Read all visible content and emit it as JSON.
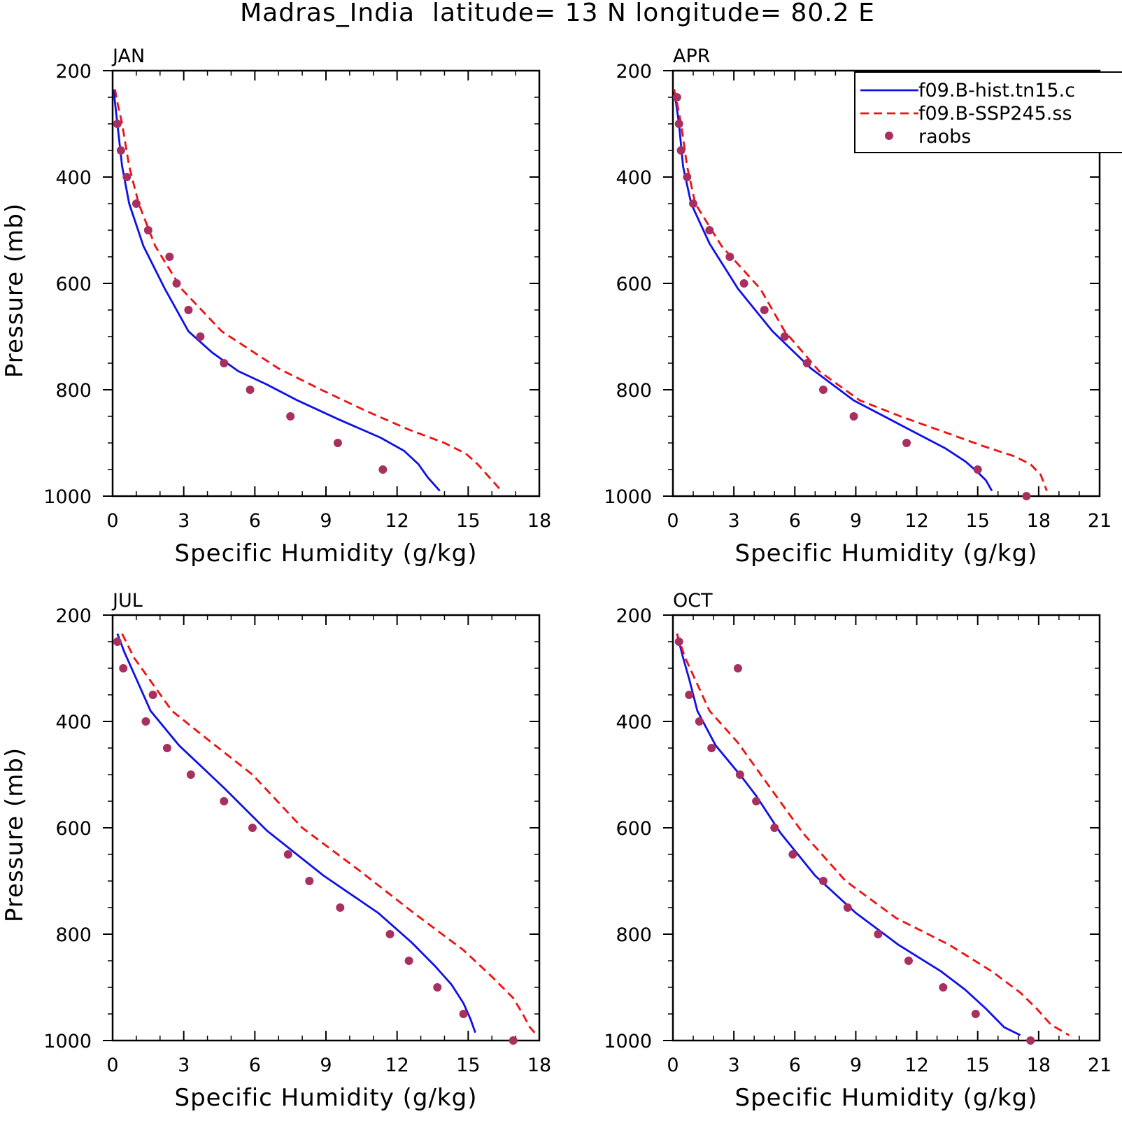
{
  "figure": {
    "title": "Madras_India  latitude= 13 N longitude= 80.2 E"
  },
  "legend": {
    "entries": [
      {
        "label": "f09.B-hist.tn15.c",
        "style": "solid",
        "color": "#1010e8"
      },
      {
        "label": "f09.B-SSP245.ss",
        "style": "dashed",
        "color": "#f01010"
      },
      {
        "label": "raobs",
        "style": "dot",
        "color": "#a83060"
      }
    ]
  },
  "colors": {
    "hist": "#1010e8",
    "ssp": "#f01010",
    "raobs": "#a83060"
  },
  "chart_data": [
    {
      "type": "line",
      "panel": "JAN",
      "xlabel": "Specific Humidity (g/kg)",
      "ylabel": "Pressure (mb)",
      "xlim": [
        0,
        18
      ],
      "ylim": [
        1000,
        200
      ],
      "xticks": [
        0,
        3,
        6,
        9,
        12,
        15,
        18
      ],
      "yticks": [
        200,
        400,
        600,
        800,
        1000
      ],
      "series": [
        {
          "name": "f09.B-hist.tn15.c",
          "style": "solid",
          "x": [
            0.05,
            0.1,
            0.2,
            0.4,
            0.7,
            1.3,
            2.2,
            3.2,
            4.2,
            5.3,
            6.5,
            7.8,
            9.5,
            11.3,
            12.3,
            12.9,
            13.3,
            13.8
          ],
          "y": [
            235,
            260,
            300,
            380,
            450,
            530,
            610,
            690,
            730,
            765,
            790,
            820,
            855,
            890,
            915,
            940,
            965,
            990
          ]
        },
        {
          "name": "f09.B-SSP245.ss",
          "style": "dashed",
          "x": [
            0.1,
            0.2,
            0.4,
            0.7,
            1.1,
            1.8,
            2.9,
            4.6,
            7.0,
            8.8,
            10.7,
            12.5,
            14.0,
            14.9,
            15.4,
            15.9,
            16.4
          ],
          "y": [
            235,
            260,
            300,
            380,
            450,
            530,
            610,
            690,
            760,
            800,
            840,
            875,
            900,
            920,
            940,
            965,
            990
          ]
        },
        {
          "name": "raobs",
          "style": "dot",
          "x": [
            0.2,
            0.35,
            0.6,
            1.0,
            1.5,
            2.4,
            2.7,
            3.2,
            3.7,
            4.7,
            5.8,
            7.5,
            9.5,
            11.4
          ],
          "y": [
            300,
            350,
            400,
            450,
            500,
            550,
            600,
            650,
            700,
            750,
            800,
            850,
            900,
            950
          ]
        }
      ]
    },
    {
      "type": "line",
      "panel": "APR",
      "xlabel": "Specific Humidity (g/kg)",
      "ylabel": "",
      "xlim": [
        0,
        21
      ],
      "ylim": [
        1000,
        200
      ],
      "xticks": [
        0,
        3,
        6,
        9,
        12,
        15,
        18,
        21
      ],
      "yticks": [
        200,
        400,
        600,
        800,
        1000
      ],
      "series": [
        {
          "name": "f09.B-hist.tn15.c",
          "style": "solid",
          "x": [
            0.05,
            0.15,
            0.3,
            0.5,
            0.9,
            1.8,
            3.2,
            4.9,
            6.8,
            8.9,
            11.4,
            13.4,
            14.4,
            15.0,
            15.4,
            15.7
          ],
          "y": [
            235,
            260,
            300,
            380,
            450,
            525,
            610,
            690,
            760,
            820,
            870,
            910,
            935,
            955,
            970,
            990
          ]
        },
        {
          "name": "f09.B-SSP245.ss",
          "style": "dashed",
          "x": [
            0.05,
            0.2,
            0.4,
            0.7,
            1.1,
            2.4,
            4.3,
            5.5,
            7.2,
            9.2,
            11.2,
            13.4,
            15.2,
            16.8,
            17.6,
            18.1,
            18.4
          ],
          "y": [
            235,
            260,
            300,
            380,
            450,
            530,
            610,
            690,
            765,
            820,
            850,
            880,
            905,
            925,
            940,
            960,
            990
          ]
        },
        {
          "name": "raobs",
          "style": "dot",
          "x": [
            0.2,
            0.3,
            0.4,
            0.7,
            1.0,
            1.8,
            2.8,
            3.5,
            4.5,
            5.5,
            6.6,
            7.4,
            8.9,
            11.5,
            15.0,
            17.4
          ],
          "y": [
            250,
            300,
            350,
            400,
            450,
            500,
            550,
            600,
            650,
            700,
            750,
            800,
            850,
            900,
            950,
            1000
          ]
        }
      ]
    },
    {
      "type": "line",
      "panel": "JUL",
      "xlabel": "Specific Humidity (g/kg)",
      "ylabel": "Pressure (mb)",
      "xlim": [
        0,
        18
      ],
      "ylim": [
        1000,
        200
      ],
      "xticks": [
        0,
        3,
        6,
        9,
        12,
        15,
        18
      ],
      "yticks": [
        200,
        400,
        600,
        800,
        1000
      ],
      "series": [
        {
          "name": "f09.B-hist.tn15.c",
          "style": "solid",
          "x": [
            0.2,
            0.5,
            1.0,
            1.6,
            2.8,
            4.7,
            6.5,
            8.9,
            11.2,
            12.6,
            13.6,
            14.3,
            14.8,
            15.1,
            15.3
          ],
          "y": [
            235,
            270,
            320,
            380,
            445,
            525,
            605,
            690,
            760,
            815,
            860,
            895,
            930,
            960,
            985
          ]
        },
        {
          "name": "f09.B-SSP245.ss",
          "style": "dashed",
          "x": [
            0.4,
            0.9,
            1.7,
            2.5,
            3.9,
            5.9,
            8.0,
            10.4,
            12.7,
            14.8,
            16.0,
            16.9,
            17.3,
            17.6,
            17.9
          ],
          "y": [
            235,
            280,
            330,
            380,
            430,
            500,
            600,
            680,
            760,
            830,
            880,
            920,
            950,
            975,
            990
          ]
        },
        {
          "name": "raobs",
          "style": "dot",
          "x": [
            0.2,
            0.45,
            1.7,
            1.4,
            2.3,
            3.3,
            4.7,
            5.9,
            7.4,
            8.3,
            9.6,
            11.7,
            12.5,
            13.7,
            14.8,
            16.9
          ],
          "y": [
            250,
            300,
            350,
            400,
            450,
            500,
            550,
            600,
            650,
            700,
            750,
            800,
            850,
            900,
            950,
            1000
          ]
        }
      ]
    },
    {
      "type": "line",
      "panel": "OCT",
      "xlabel": "Specific Humidity (g/kg)",
      "ylabel": "",
      "xlim": [
        0,
        21
      ],
      "ylim": [
        1000,
        200
      ],
      "xticks": [
        0,
        3,
        6,
        9,
        12,
        15,
        18,
        21
      ],
      "yticks": [
        200,
        400,
        600,
        800,
        1000
      ],
      "series": [
        {
          "name": "f09.B-hist.tn15.c",
          "style": "solid",
          "x": [
            0.2,
            0.5,
            0.8,
            1.2,
            2.1,
            3.4,
            4.1,
            5.3,
            7.0,
            9.0,
            11.1,
            13.2,
            14.4,
            15.4,
            16.3,
            17.1
          ],
          "y": [
            235,
            280,
            320,
            380,
            445,
            505,
            540,
            610,
            690,
            760,
            820,
            870,
            905,
            940,
            975,
            990
          ]
        },
        {
          "name": "f09.B-SSP245.ss",
          "style": "dashed",
          "x": [
            0.2,
            0.6,
            1.2,
            1.8,
            3.2,
            4.7,
            6.4,
            8.5,
            11.0,
            13.6,
            15.7,
            17.1,
            17.9,
            18.6,
            19.5
          ],
          "y": [
            235,
            280,
            330,
            380,
            440,
            520,
            610,
            700,
            770,
            820,
            870,
            910,
            940,
            970,
            990
          ]
        },
        {
          "name": "raobs",
          "style": "dot",
          "x": [
            0.3,
            3.2,
            0.8,
            1.3,
            1.9,
            3.3,
            4.1,
            5.0,
            5.9,
            7.4,
            8.6,
            10.1,
            11.6,
            13.3,
            14.9,
            17.6
          ],
          "y": [
            250,
            300,
            350,
            400,
            450,
            500,
            550,
            600,
            650,
            700,
            750,
            800,
            850,
            900,
            950,
            1000
          ]
        }
      ]
    }
  ]
}
